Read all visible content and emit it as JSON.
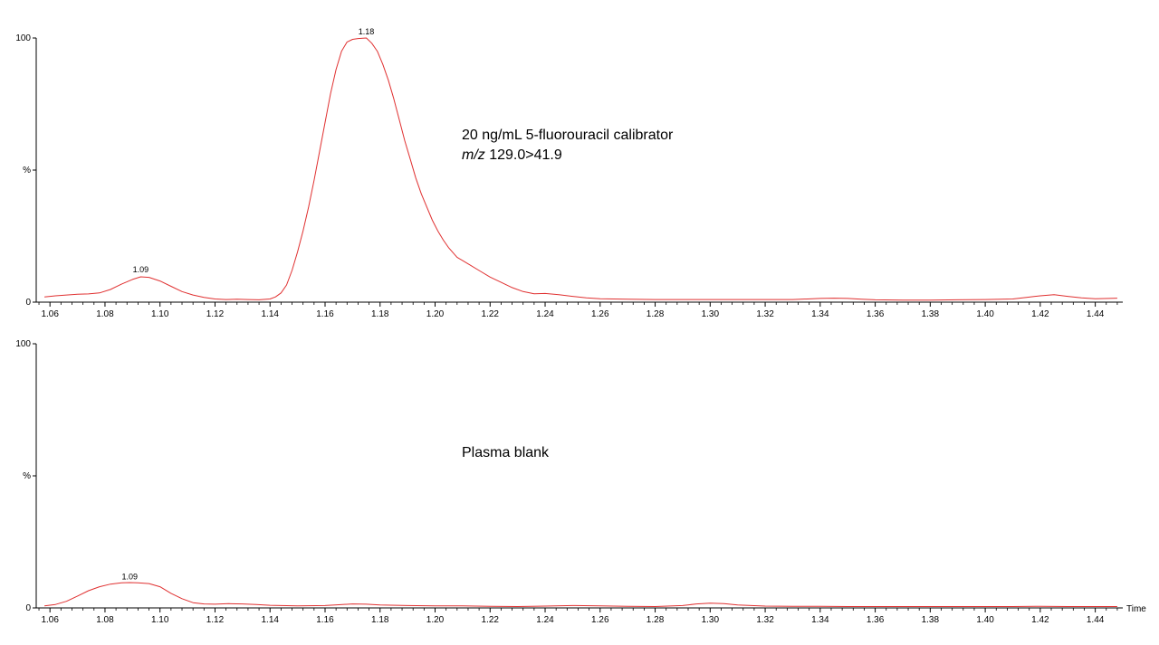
{
  "chart_data": [
    {
      "type": "line",
      "line_color": "#e03030",
      "xlabel": "",
      "ylabel": "%",
      "xlim": [
        1.055,
        1.45
      ],
      "ylim": [
        0,
        100
      ],
      "x_ticks": [
        "1.06",
        "1.08",
        "1.10",
        "1.12",
        "1.14",
        "1.16",
        "1.18",
        "1.20",
        "1.22",
        "1.24",
        "1.26",
        "1.28",
        "1.30",
        "1.32",
        "1.34",
        "1.36",
        "1.38",
        "1.40",
        "1.42",
        "1.44"
      ],
      "y_ticks": [
        "0",
        "%",
        "100"
      ],
      "annotation_lines": [
        "20 ng/mL 5-fluorouracil calibrator",
        "m/z",
        "129.0>41.9"
      ],
      "peaks": [
        {
          "label": "1.09",
          "x": 1.093,
          "y": 10
        },
        {
          "label": "1.18",
          "x": 1.175,
          "y": 100
        }
      ],
      "series": [
        {
          "x": [
            1.058,
            1.062,
            1.066,
            1.07,
            1.074,
            1.078,
            1.082,
            1.086,
            1.09,
            1.093,
            1.096,
            1.1,
            1.104,
            1.108,
            1.112,
            1.116,
            1.12,
            1.124,
            1.128,
            1.132,
            1.136,
            1.14,
            1.142,
            1.144,
            1.146,
            1.148,
            1.15,
            1.152,
            1.154,
            1.156,
            1.158,
            1.16,
            1.162,
            1.164,
            1.166,
            1.168,
            1.17,
            1.172,
            1.175,
            1.177,
            1.179,
            1.181,
            1.183,
            1.185,
            1.187,
            1.189,
            1.191,
            1.193,
            1.195,
            1.197,
            1.199,
            1.201,
            1.203,
            1.205,
            1.208,
            1.212,
            1.216,
            1.22,
            1.224,
            1.228,
            1.232,
            1.236,
            1.24,
            1.245,
            1.25,
            1.255,
            1.26,
            1.27,
            1.28,
            1.29,
            1.3,
            1.31,
            1.32,
            1.33,
            1.34,
            1.345,
            1.35,
            1.355,
            1.36,
            1.37,
            1.38,
            1.39,
            1.4,
            1.41,
            1.415,
            1.42,
            1.425,
            1.43,
            1.435,
            1.44,
            1.445,
            1.448
          ],
          "y": [
            2,
            2.4,
            2.7,
            3,
            3.1,
            3.5,
            4.8,
            6.8,
            8.6,
            9.6,
            9.4,
            8,
            6,
            4,
            2.7,
            1.8,
            1.2,
            1,
            1.1,
            1,
            0.9,
            1.2,
            2,
            3.5,
            6.5,
            12,
            19,
            27,
            36,
            46,
            57,
            68,
            79,
            88,
            95,
            98.5,
            99.5,
            99.8,
            100,
            98,
            95,
            90,
            84,
            77,
            69,
            61,
            54,
            47,
            41,
            36,
            31,
            27,
            23.5,
            20.5,
            17,
            14.5,
            12,
            9.5,
            7.5,
            5.5,
            4,
            3.2,
            3.3,
            2.8,
            2.2,
            1.6,
            1.3,
            1.1,
            1,
            1,
            1,
            1,
            1,
            1,
            1.4,
            1.5,
            1.4,
            1.1,
            0.9,
            0.8,
            0.8,
            0.9,
            1,
            1.2,
            1.8,
            2.4,
            2.8,
            2.2,
            1.6,
            1.3,
            1.4,
            1.5
          ]
        }
      ]
    },
    {
      "type": "line",
      "line_color": "#e03030",
      "xlabel": "Time",
      "ylabel": "%",
      "xlim": [
        1.055,
        1.45
      ],
      "ylim": [
        0,
        100
      ],
      "x_ticks": [
        "1.06",
        "1.08",
        "1.10",
        "1.12",
        "1.14",
        "1.16",
        "1.18",
        "1.20",
        "1.22",
        "1.24",
        "1.26",
        "1.28",
        "1.30",
        "1.32",
        "1.34",
        "1.36",
        "1.38",
        "1.40",
        "1.42",
        "1.44"
      ],
      "y_ticks": [
        "0",
        "%",
        "100"
      ],
      "annotation_lines": [
        "Plasma blank"
      ],
      "peaks": [
        {
          "label": "1.09",
          "x": 1.089,
          "y": 9.5
        }
      ],
      "series": [
        {
          "x": [
            1.058,
            1.062,
            1.066,
            1.07,
            1.074,
            1.078,
            1.082,
            1.086,
            1.089,
            1.092,
            1.096,
            1.1,
            1.104,
            1.108,
            1.112,
            1.116,
            1.12,
            1.125,
            1.13,
            1.135,
            1.14,
            1.15,
            1.16,
            1.165,
            1.17,
            1.175,
            1.18,
            1.19,
            1.2,
            1.21,
            1.22,
            1.23,
            1.24,
            1.25,
            1.26,
            1.27,
            1.28,
            1.29,
            1.295,
            1.3,
            1.305,
            1.31,
            1.32,
            1.33,
            1.34,
            1.35,
            1.36,
            1.37,
            1.38,
            1.39,
            1.4,
            1.41,
            1.42,
            1.43,
            1.44,
            1.448
          ],
          "y": [
            0.8,
            1.3,
            2.5,
            4.5,
            6.5,
            8,
            9,
            9.5,
            9.6,
            9.5,
            9.2,
            8,
            5.5,
            3.5,
            2,
            1.5,
            1.4,
            1.6,
            1.5,
            1.3,
            1,
            0.8,
            0.9,
            1.2,
            1.5,
            1.4,
            1.1,
            0.9,
            0.8,
            0.8,
            0.6,
            0.5,
            0.7,
            0.9,
            0.8,
            0.6,
            0.5,
            0.9,
            1.5,
            1.8,
            1.6,
            1.1,
            0.7,
            0.6,
            0.6,
            0.5,
            0.5,
            0.5,
            0.5,
            0.5,
            0.5,
            0.5,
            0.6,
            0.5,
            0.5,
            0.5
          ]
        }
      ]
    }
  ]
}
